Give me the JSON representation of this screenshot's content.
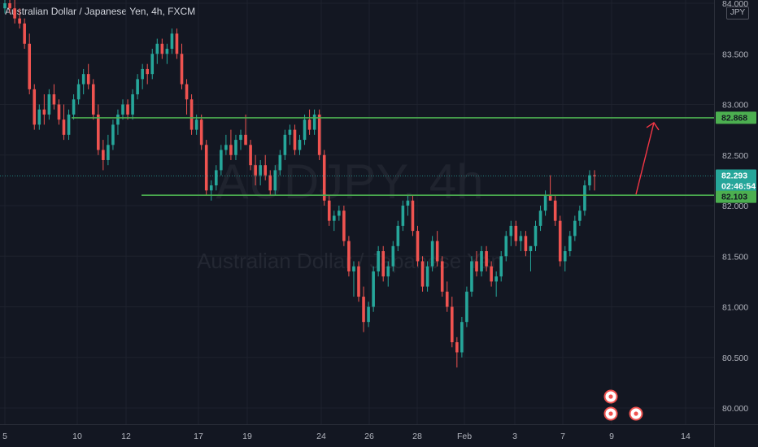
{
  "header": {
    "symbol_title": "Australian Dollar / Japanese Yen, 4h, FXCM",
    "currency": "JPY"
  },
  "watermark": {
    "symbol": "AUDJPY, 4h",
    "description": "Australian Dollar / Japanese Yen"
  },
  "colors": {
    "background": "#131722",
    "up": "#26a69a",
    "down": "#ef5350",
    "level_line": "#4caf50",
    "arrow": "#f23645",
    "grid": "#1e222d"
  },
  "chart_data": {
    "type": "candlestick",
    "title": "Australian Dollar / Japanese Yen, 4h, FXCM",
    "ylim": [
      79.85,
      84.0
    ],
    "y_ticks": [
      "84.000",
      "83.500",
      "83.000",
      "82.500",
      "82.000",
      "81.500",
      "81.000",
      "80.500",
      "80.000"
    ],
    "x_ticks": [
      "5",
      "10",
      "12",
      "17",
      "19",
      "24",
      "26",
      "28",
      "Feb",
      "3",
      "7",
      "9",
      "14"
    ],
    "grid": true,
    "legend": "none",
    "candles": [
      [
        83.95,
        84.05,
        83.9,
        84.0
      ],
      [
        84.0,
        84.1,
        83.9,
        83.95
      ],
      [
        83.95,
        84.05,
        83.8,
        83.85
      ],
      [
        83.85,
        83.95,
        83.75,
        83.8
      ],
      [
        83.8,
        83.85,
        83.55,
        83.6
      ],
      [
        83.6,
        83.7,
        83.1,
        83.15
      ],
      [
        83.15,
        83.2,
        82.75,
        82.8
      ],
      [
        82.8,
        83.0,
        82.75,
        82.95
      ],
      [
        82.95,
        83.1,
        82.8,
        82.9
      ],
      [
        82.9,
        83.15,
        82.85,
        83.1
      ],
      [
        83.1,
        83.2,
        82.95,
        83.0
      ],
      [
        83.0,
        83.05,
        82.8,
        82.85
      ],
      [
        82.85,
        83.0,
        82.65,
        82.7
      ],
      [
        82.7,
        82.95,
        82.65,
        82.9
      ],
      [
        82.9,
        83.1,
        82.85,
        83.05
      ],
      [
        83.05,
        83.25,
        83.0,
        83.2
      ],
      [
        83.2,
        83.35,
        83.1,
        83.3
      ],
      [
        83.3,
        83.4,
        83.15,
        83.2
      ],
      [
        83.2,
        83.25,
        82.85,
        82.9
      ],
      [
        82.9,
        83.0,
        82.5,
        82.55
      ],
      [
        82.55,
        82.65,
        82.35,
        82.45
      ],
      [
        82.45,
        82.7,
        82.4,
        82.6
      ],
      [
        82.6,
        82.85,
        82.55,
        82.8
      ],
      [
        82.8,
        82.95,
        82.7,
        82.9
      ],
      [
        82.9,
        83.05,
        82.85,
        83.0
      ],
      [
        83.0,
        83.05,
        82.85,
        82.9
      ],
      [
        82.9,
        83.15,
        82.85,
        83.1
      ],
      [
        83.1,
        83.3,
        83.05,
        83.25
      ],
      [
        83.25,
        83.4,
        83.15,
        83.35
      ],
      [
        83.35,
        83.4,
        83.2,
        83.3
      ],
      [
        83.3,
        83.55,
        83.25,
        83.5
      ],
      [
        83.5,
        83.65,
        83.4,
        83.6
      ],
      [
        83.6,
        83.65,
        83.45,
        83.5
      ],
      [
        83.5,
        83.6,
        83.4,
        83.55
      ],
      [
        83.55,
        83.75,
        83.5,
        83.7
      ],
      [
        83.7,
        83.75,
        83.45,
        83.5
      ],
      [
        83.5,
        83.6,
        83.15,
        83.2
      ],
      [
        83.2,
        83.25,
        82.9,
        83.05
      ],
      [
        83.05,
        83.1,
        82.7,
        82.75
      ],
      [
        82.75,
        82.9,
        82.7,
        82.85
      ],
      [
        82.85,
        82.9,
        82.55,
        82.6
      ],
      [
        82.6,
        82.65,
        82.1,
        82.15
      ],
      [
        82.15,
        82.25,
        82.05,
        82.2
      ],
      [
        82.2,
        82.4,
        82.15,
        82.35
      ],
      [
        82.35,
        82.6,
        82.3,
        82.55
      ],
      [
        82.55,
        82.7,
        82.5,
        82.6
      ],
      [
        82.6,
        82.75,
        82.45,
        82.5
      ],
      [
        82.5,
        82.7,
        82.45,
        82.65
      ],
      [
        82.65,
        82.75,
        82.55,
        82.7
      ],
      [
        82.7,
        82.9,
        82.6,
        82.6
      ],
      [
        82.6,
        82.65,
        82.35,
        82.4
      ],
      [
        82.4,
        82.5,
        82.2,
        82.3
      ],
      [
        82.3,
        82.45,
        82.2,
        82.4
      ],
      [
        82.4,
        82.5,
        82.25,
        82.3
      ],
      [
        82.3,
        82.35,
        82.1,
        82.15
      ],
      [
        82.15,
        82.4,
        82.1,
        82.35
      ],
      [
        82.35,
        82.55,
        82.3,
        82.5
      ],
      [
        82.5,
        82.75,
        82.45,
        82.7
      ],
      [
        82.7,
        82.8,
        82.6,
        82.75
      ],
      [
        82.75,
        82.8,
        82.5,
        82.55
      ],
      [
        82.55,
        82.7,
        82.5,
        82.65
      ],
      [
        82.65,
        82.9,
        82.6,
        82.85
      ],
      [
        82.85,
        82.95,
        82.7,
        82.75
      ],
      [
        82.75,
        82.95,
        82.7,
        82.9
      ],
      [
        82.9,
        82.95,
        82.45,
        82.5
      ],
      [
        82.5,
        82.55,
        82.0,
        82.05
      ],
      [
        82.05,
        82.1,
        81.8,
        81.85
      ],
      [
        81.85,
        81.95,
        81.75,
        81.9
      ],
      [
        81.9,
        82.0,
        81.85,
        81.95
      ],
      [
        81.95,
        82.0,
        81.6,
        81.65
      ],
      [
        81.65,
        81.7,
        81.3,
        81.35
      ],
      [
        81.35,
        81.45,
        81.1,
        81.4
      ],
      [
        81.4,
        81.45,
        81.05,
        81.1
      ],
      [
        81.1,
        81.2,
        80.75,
        80.85
      ],
      [
        80.85,
        81.05,
        80.8,
        81.0
      ],
      [
        81.0,
        81.4,
        80.95,
        81.35
      ],
      [
        81.35,
        81.6,
        81.3,
        81.55
      ],
      [
        81.55,
        81.6,
        81.25,
        81.3
      ],
      [
        81.3,
        81.45,
        81.2,
        81.4
      ],
      [
        81.4,
        81.65,
        81.35,
        81.6
      ],
      [
        81.6,
        81.85,
        81.55,
        81.8
      ],
      [
        81.8,
        82.05,
        81.75,
        82.0
      ],
      [
        82.0,
        82.1,
        81.9,
        82.05
      ],
      [
        82.05,
        82.1,
        81.7,
        81.75
      ],
      [
        81.75,
        81.8,
        81.4,
        81.45
      ],
      [
        81.45,
        81.5,
        81.15,
        81.2
      ],
      [
        81.2,
        81.45,
        81.15,
        81.4
      ],
      [
        81.4,
        81.7,
        81.35,
        81.65
      ],
      [
        81.65,
        81.75,
        81.4,
        81.45
      ],
      [
        81.45,
        81.5,
        81.1,
        81.15
      ],
      [
        81.15,
        81.25,
        80.95,
        81.0
      ],
      [
        81.0,
        81.1,
        80.6,
        80.65
      ],
      [
        80.65,
        80.7,
        80.4,
        80.55
      ],
      [
        80.55,
        80.9,
        80.5,
        80.85
      ],
      [
        80.85,
        81.2,
        80.8,
        81.15
      ],
      [
        81.15,
        81.5,
        81.1,
        81.45
      ],
      [
        81.45,
        81.55,
        81.3,
        81.35
      ],
      [
        81.35,
        81.6,
        81.3,
        81.55
      ],
      [
        81.55,
        81.6,
        81.35,
        81.4
      ],
      [
        81.4,
        81.45,
        81.2,
        81.25
      ],
      [
        81.25,
        81.35,
        81.1,
        81.3
      ],
      [
        81.3,
        81.55,
        81.25,
        81.5
      ],
      [
        81.5,
        81.75,
        81.45,
        81.7
      ],
      [
        81.7,
        81.85,
        81.6,
        81.8
      ],
      [
        81.8,
        81.85,
        81.6,
        81.65
      ],
      [
        81.65,
        81.75,
        81.55,
        81.7
      ],
      [
        81.7,
        81.75,
        81.5,
        81.55
      ],
      [
        81.55,
        81.6,
        81.35,
        81.6
      ],
      [
        81.6,
        81.85,
        81.55,
        81.8
      ],
      [
        81.8,
        82.0,
        81.75,
        81.95
      ],
      [
        81.95,
        82.15,
        81.9,
        82.1
      ],
      [
        82.1,
        82.3,
        82.05,
        82.05
      ],
      [
        82.05,
        82.1,
        81.8,
        81.85
      ],
      [
        81.85,
        81.9,
        81.4,
        81.45
      ],
      [
        81.45,
        81.6,
        81.35,
        81.55
      ],
      [
        81.55,
        81.75,
        81.5,
        81.7
      ],
      [
        81.7,
        81.9,
        81.65,
        81.85
      ],
      [
        81.85,
        82.0,
        81.8,
        81.95
      ],
      [
        81.95,
        82.25,
        81.9,
        82.2
      ],
      [
        82.2,
        82.35,
        82.15,
        82.3
      ],
      [
        82.3,
        82.35,
        82.15,
        82.29
      ]
    ],
    "levels": [
      {
        "price": 82.868,
        "label": "82.868"
      },
      {
        "price": 82.103,
        "label": "82.103"
      }
    ],
    "last_price": {
      "price": 82.293,
      "label": "82.293",
      "countdown": "02:46:54"
    },
    "projection_arrow": {
      "from_price": 82.103,
      "to_price": 82.868
    }
  }
}
